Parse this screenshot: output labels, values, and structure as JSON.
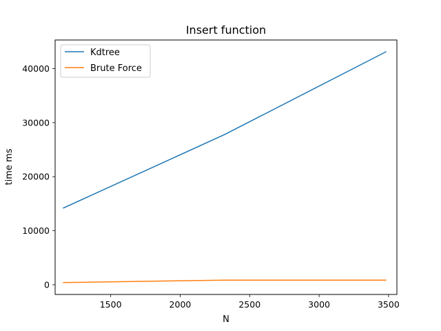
{
  "chart_data": {
    "type": "line",
    "title": "Insert function",
    "xlabel": "N",
    "ylabel": "time ms",
    "xlim": [
      1100,
      3560
    ],
    "ylim": [
      -1800,
      45300
    ],
    "xticks": [
      1500,
      2000,
      2500,
      3000,
      3500
    ],
    "yticks": [
      0,
      10000,
      20000,
      30000,
      40000
    ],
    "grid": false,
    "legend_position": "top-left",
    "series": [
      {
        "name": "Kdtree",
        "color": "#1f77b4",
        "x": [
          1160,
          2320,
          3480
        ],
        "y": [
          14200,
          27800,
          43100
        ]
      },
      {
        "name": "Brute Force",
        "color": "#ff7f0e",
        "x": [
          1160,
          2320,
          3480
        ],
        "y": [
          400,
          850,
          850
        ]
      }
    ]
  }
}
